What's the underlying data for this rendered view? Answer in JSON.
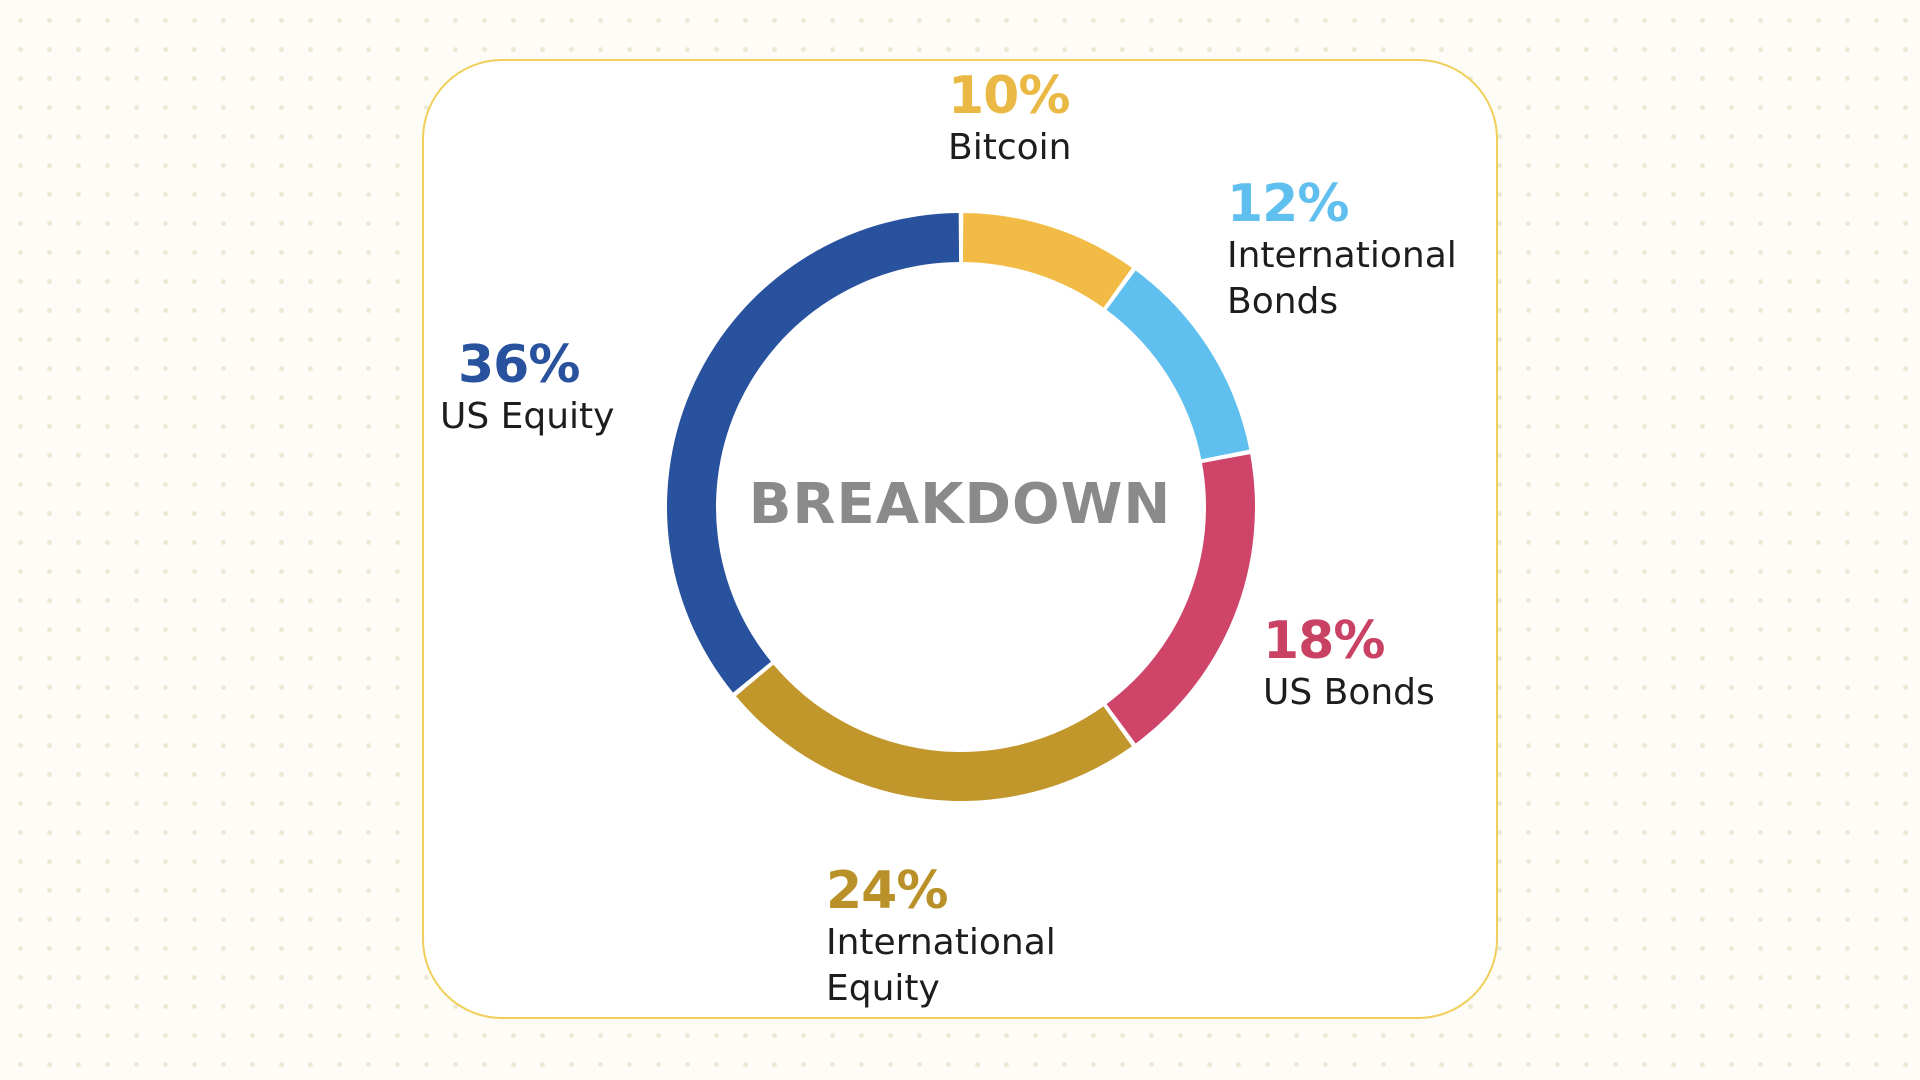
{
  "chart_data": {
    "type": "pie",
    "title": "BREAKDOWN",
    "slices": [
      {
        "label": "Bitcoin",
        "value": 10,
        "percent_label": "10%",
        "color": "#f2bb45"
      },
      {
        "label": "International Bonds",
        "value": 12,
        "percent_label": "12%",
        "color": "#5fbfef"
      },
      {
        "label": "US Bonds",
        "value": 18,
        "percent_label": "18%",
        "color": "#cf456a"
      },
      {
        "label": "International Equity",
        "value": 24,
        "percent_label": "24%",
        "color": "#c1962b"
      },
      {
        "label": "US Equity",
        "value": 36,
        "percent_label": "36%",
        "color": "#28519e"
      }
    ],
    "labels": {
      "bitcoin": {
        "pct": "10%",
        "name": "Bitcoin"
      },
      "intl_bonds": {
        "pct": "12%",
        "name_line1": "International",
        "name_line2": "Bonds"
      },
      "us_bonds": {
        "pct": "18%",
        "name": "US Bonds"
      },
      "intl_equity": {
        "pct": "24%",
        "name_line1": "International",
        "name_line2": "Equity"
      },
      "us_equity": {
        "pct": "36%",
        "name": "US Equity"
      }
    },
    "legend": "none",
    "grid": false
  },
  "colors": {
    "card_border": "#f0cf5a",
    "center_text": "#8a8a8a",
    "label_text": "#1d1d1d"
  }
}
